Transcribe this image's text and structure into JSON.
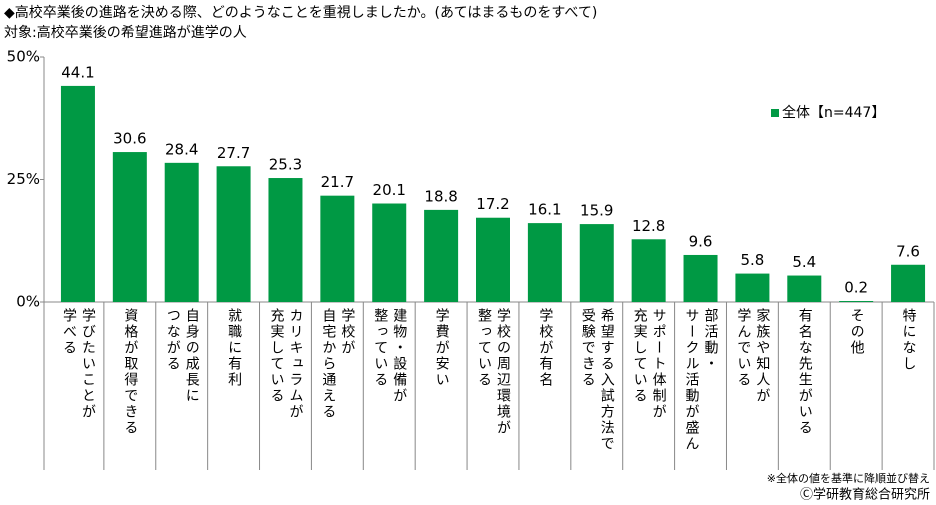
{
  "chart_data": {
    "type": "bar",
    "title": "◆高校卒業後の進路を決める際、どのようなことを重視しましたか。(あてはまるものをすべて)",
    "subtitle": "対象:高校卒業後の希望進路が進学の人",
    "categories": [
      "学びたいことが\n学べる",
      "資格が取得できる",
      "自身の成長に\nつながる",
      "就職に有利",
      "カリキュラムが\n充実している",
      "学校が\n自宅から通える",
      "建物・設備が\n整っている",
      "学費が安い",
      "学校の周辺環境が\n整っている",
      "学校が有名",
      "希望する入試方法で\n受験できる",
      "サポート体制が\n充実している",
      "部活動・\nサークル活動が盛ん",
      "家族や知人が\n学んでいる",
      "有名な先生がいる",
      "その他",
      "特になし"
    ],
    "series": [
      {
        "name": "全体【n=447】",
        "color": "#009944",
        "values": [
          44.1,
          30.6,
          28.4,
          27.7,
          25.3,
          21.7,
          20.1,
          18.8,
          17.2,
          16.1,
          15.9,
          12.8,
          9.6,
          5.8,
          5.4,
          0.2,
          7.6
        ]
      }
    ],
    "ylim": [
      0,
      50
    ],
    "yticks": [
      {
        "value": 0,
        "label": "0%"
      },
      {
        "value": 25,
        "label": "25%"
      },
      {
        "value": 50,
        "label": "50%"
      }
    ],
    "legend": "upper right",
    "notes": [
      "※全体の値を基準に降順並び替え",
      "Ⓒ学研教育総合研究所"
    ]
  }
}
